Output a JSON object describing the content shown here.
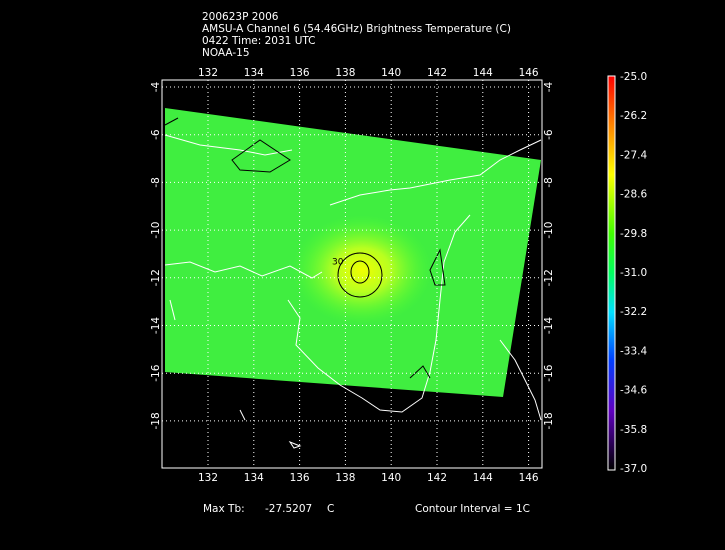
{
  "header": {
    "lines": [
      "200623P 2006",
      "AMSU-A Channel 6 (54.46GHz) Brightness Temperature (C)",
      "0422 Time: 2031 UTC",
      "NOAA-15"
    ]
  },
  "map": {
    "x_ticks": [
      "132",
      "134",
      "136",
      "138",
      "140",
      "142",
      "144",
      "146"
    ],
    "y_ticks": [
      "-4",
      "-6",
      "-8",
      "-10",
      "-12",
      "-14",
      "-16",
      "-18"
    ],
    "contour_label": "30"
  },
  "colorbar": {
    "labels": [
      "-25.0",
      "-26.2",
      "-27.4",
      "-28.6",
      "-29.8",
      "-31.0",
      "-32.2",
      "-33.4",
      "-34.6",
      "-35.8",
      "-37.0"
    ]
  },
  "footer": {
    "max_label": "Max Tb:",
    "max_value": "-27.5207",
    "unit": "C",
    "contour_interval": "Contour Interval = 1C"
  }
}
